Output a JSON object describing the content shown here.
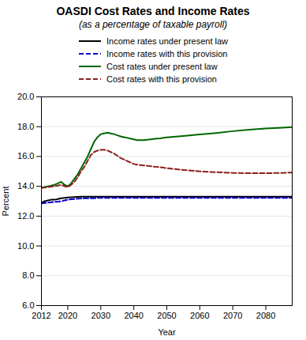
{
  "chart_data": {
    "type": "line",
    "title": "OASDI Cost Rates and Income Rates",
    "subtitle": "(as a percentage of taxable payroll)",
    "xlabel": "Year",
    "ylabel": "Percent",
    "x": [
      2012,
      2013,
      2014,
      2015,
      2016,
      2017,
      2018,
      2019,
      2020,
      2021,
      2022,
      2023,
      2024,
      2025,
      2026,
      2027,
      2028,
      2029,
      2030,
      2031,
      2032,
      2033,
      2034,
      2035,
      2036,
      2037,
      2038,
      2039,
      2040,
      2041,
      2042,
      2043,
      2044,
      2045,
      2046,
      2047,
      2048,
      2049,
      2050,
      2055,
      2060,
      2065,
      2070,
      2075,
      2080,
      2085,
      2088
    ],
    "series": [
      {
        "name": "Income rates under present law",
        "color": "#000000",
        "line_style": "solid",
        "values": [
          12.9,
          13.0,
          13.05,
          13.1,
          13.1,
          13.15,
          13.2,
          13.22,
          13.25,
          13.27,
          13.28,
          13.29,
          13.3,
          13.3,
          13.3,
          13.3,
          13.3,
          13.3,
          13.3,
          13.3,
          13.3,
          13.3,
          13.3,
          13.3,
          13.3,
          13.3,
          13.3,
          13.3,
          13.3,
          13.3,
          13.3,
          13.3,
          13.3,
          13.3,
          13.3,
          13.3,
          13.3,
          13.3,
          13.3,
          13.3,
          13.3,
          13.3,
          13.3,
          13.3,
          13.3,
          13.3,
          13.3
        ]
      },
      {
        "name": "Income rates with this provision",
        "color": "#0000cc",
        "line_style": "dashed",
        "values": [
          12.85,
          12.88,
          12.9,
          12.93,
          12.95,
          12.97,
          13.0,
          13.05,
          13.1,
          13.13,
          13.15,
          13.17,
          13.18,
          13.2,
          13.2,
          13.2,
          13.2,
          13.22,
          13.22,
          13.22,
          13.22,
          13.22,
          13.22,
          13.22,
          13.22,
          13.22,
          13.22,
          13.22,
          13.22,
          13.22,
          13.22,
          13.22,
          13.22,
          13.22,
          13.22,
          13.22,
          13.22,
          13.22,
          13.22,
          13.22,
          13.22,
          13.22,
          13.22,
          13.22,
          13.22,
          13.22,
          13.22
        ]
      },
      {
        "name": "Cost rates under present law",
        "color": "#006600",
        "line_style": "solid",
        "values": [
          13.9,
          13.95,
          14.0,
          14.05,
          14.1,
          14.2,
          14.3,
          14.1,
          14.0,
          14.2,
          14.5,
          14.8,
          15.2,
          15.6,
          16.0,
          16.5,
          17.0,
          17.3,
          17.5,
          17.55,
          17.6,
          17.55,
          17.5,
          17.42,
          17.35,
          17.3,
          17.25,
          17.2,
          17.15,
          17.1,
          17.1,
          17.1,
          17.12,
          17.15,
          17.18,
          17.2,
          17.22,
          17.25,
          17.28,
          17.38,
          17.48,
          17.58,
          17.7,
          17.8,
          17.88,
          17.93,
          17.97
        ]
      },
      {
        "name": "Cost rates with this provision",
        "color": "#8b2020",
        "line_style": "dashed",
        "values": [
          13.9,
          13.92,
          13.95,
          13.98,
          14.0,
          14.05,
          14.1,
          14.0,
          13.95,
          14.1,
          14.3,
          14.6,
          15.0,
          15.3,
          15.7,
          16.1,
          16.3,
          16.4,
          16.45,
          16.45,
          16.4,
          16.3,
          16.2,
          16.05,
          15.9,
          15.8,
          15.7,
          15.6,
          15.5,
          15.45,
          15.42,
          15.4,
          15.38,
          15.35,
          15.32,
          15.3,
          15.28,
          15.25,
          15.22,
          15.1,
          15.0,
          14.95,
          14.9,
          14.88,
          14.88,
          14.9,
          14.93
        ]
      }
    ],
    "xlim": [
      2012,
      2088
    ],
    "xticks": [
      2012,
      2020,
      2030,
      2040,
      2050,
      2060,
      2070,
      2080
    ],
    "ylim": [
      6.0,
      20.0
    ],
    "yticks": [
      {
        "value": 6.0,
        "label": "6.0"
      },
      {
        "value": 8.0,
        "label": "8.0"
      },
      {
        "value": 10.0,
        "label": "10.0"
      },
      {
        "value": 12.0,
        "label": "12.0"
      },
      {
        "value": 14.0,
        "label": "14.0"
      },
      {
        "value": 16.0,
        "label": "16.0"
      },
      {
        "value": 18.0,
        "label": "18.0"
      },
      {
        "value": 20.0,
        "label": "20.0"
      }
    ],
    "grid": "y",
    "legend": "top"
  }
}
